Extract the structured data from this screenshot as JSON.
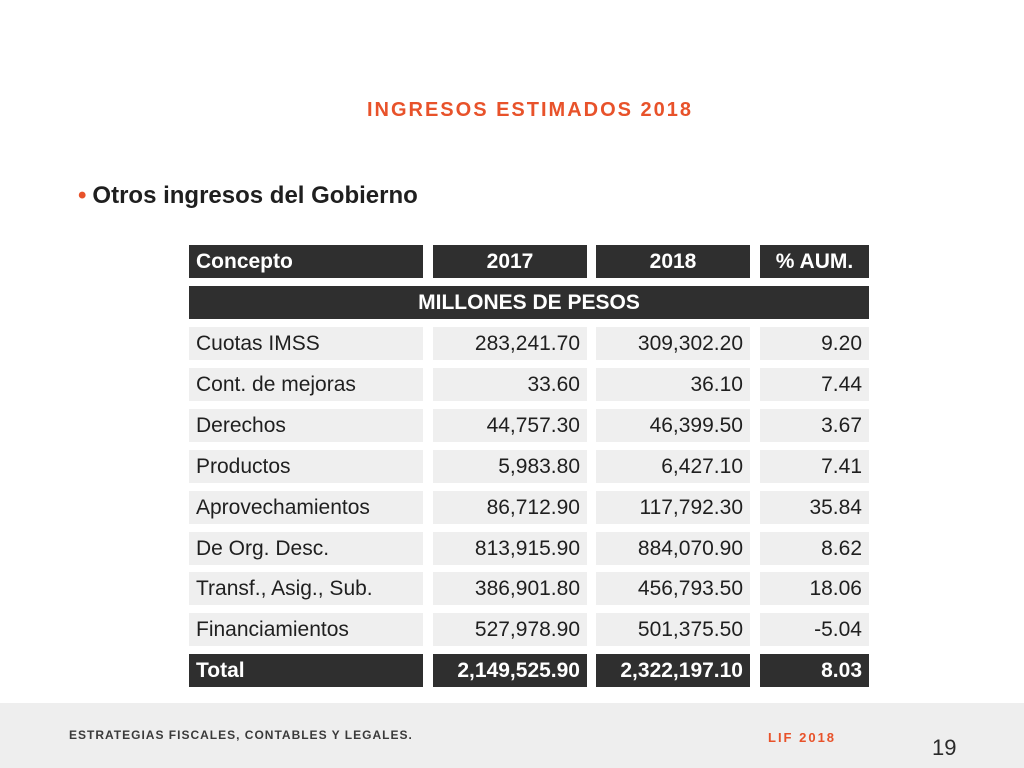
{
  "slide": {
    "title": "INGRESOS ESTIMADOS 2018",
    "bullet": "Otros ingresos del Gobierno",
    "bullet_symbol": "•"
  },
  "table": {
    "headers": [
      "Concepto",
      "2017",
      "2018",
      "% AUM."
    ],
    "unit_band": "MILLONES DE PESOS",
    "rows": [
      [
        "Cuotas IMSS",
        "283,241.70",
        "309,302.20",
        "9.20"
      ],
      [
        "Cont. de mejoras",
        "33.60",
        "36.10",
        "7.44"
      ],
      [
        "Derechos",
        "44,757.30",
        "46,399.50",
        "3.67"
      ],
      [
        "Productos",
        "5,983.80",
        "6,427.10",
        "7.41"
      ],
      [
        "Aprovechamientos",
        "86,712.90",
        "117,792.30",
        "35.84"
      ],
      [
        "De Org. Desc.",
        "813,915.90",
        "884,070.90",
        "8.62"
      ],
      [
        "Transf., Asig., Sub.",
        "386,901.80",
        "456,793.50",
        "18.06"
      ],
      [
        "Financiamientos",
        "527,978.90",
        "501,375.50",
        "-5.04"
      ]
    ],
    "total": [
      "Total",
      "2,149,525.90",
      "2,322,197.10",
      "8.03"
    ]
  },
  "footer": {
    "left": "ESTRATEGIAS FISCALES, CONTABLES Y LEGALES.",
    "right": "LIF 2018",
    "page": "19"
  },
  "colors": {
    "accent": "#e8522a",
    "dark_cell": "#2f2f2f",
    "light_cell": "#efefef"
  }
}
